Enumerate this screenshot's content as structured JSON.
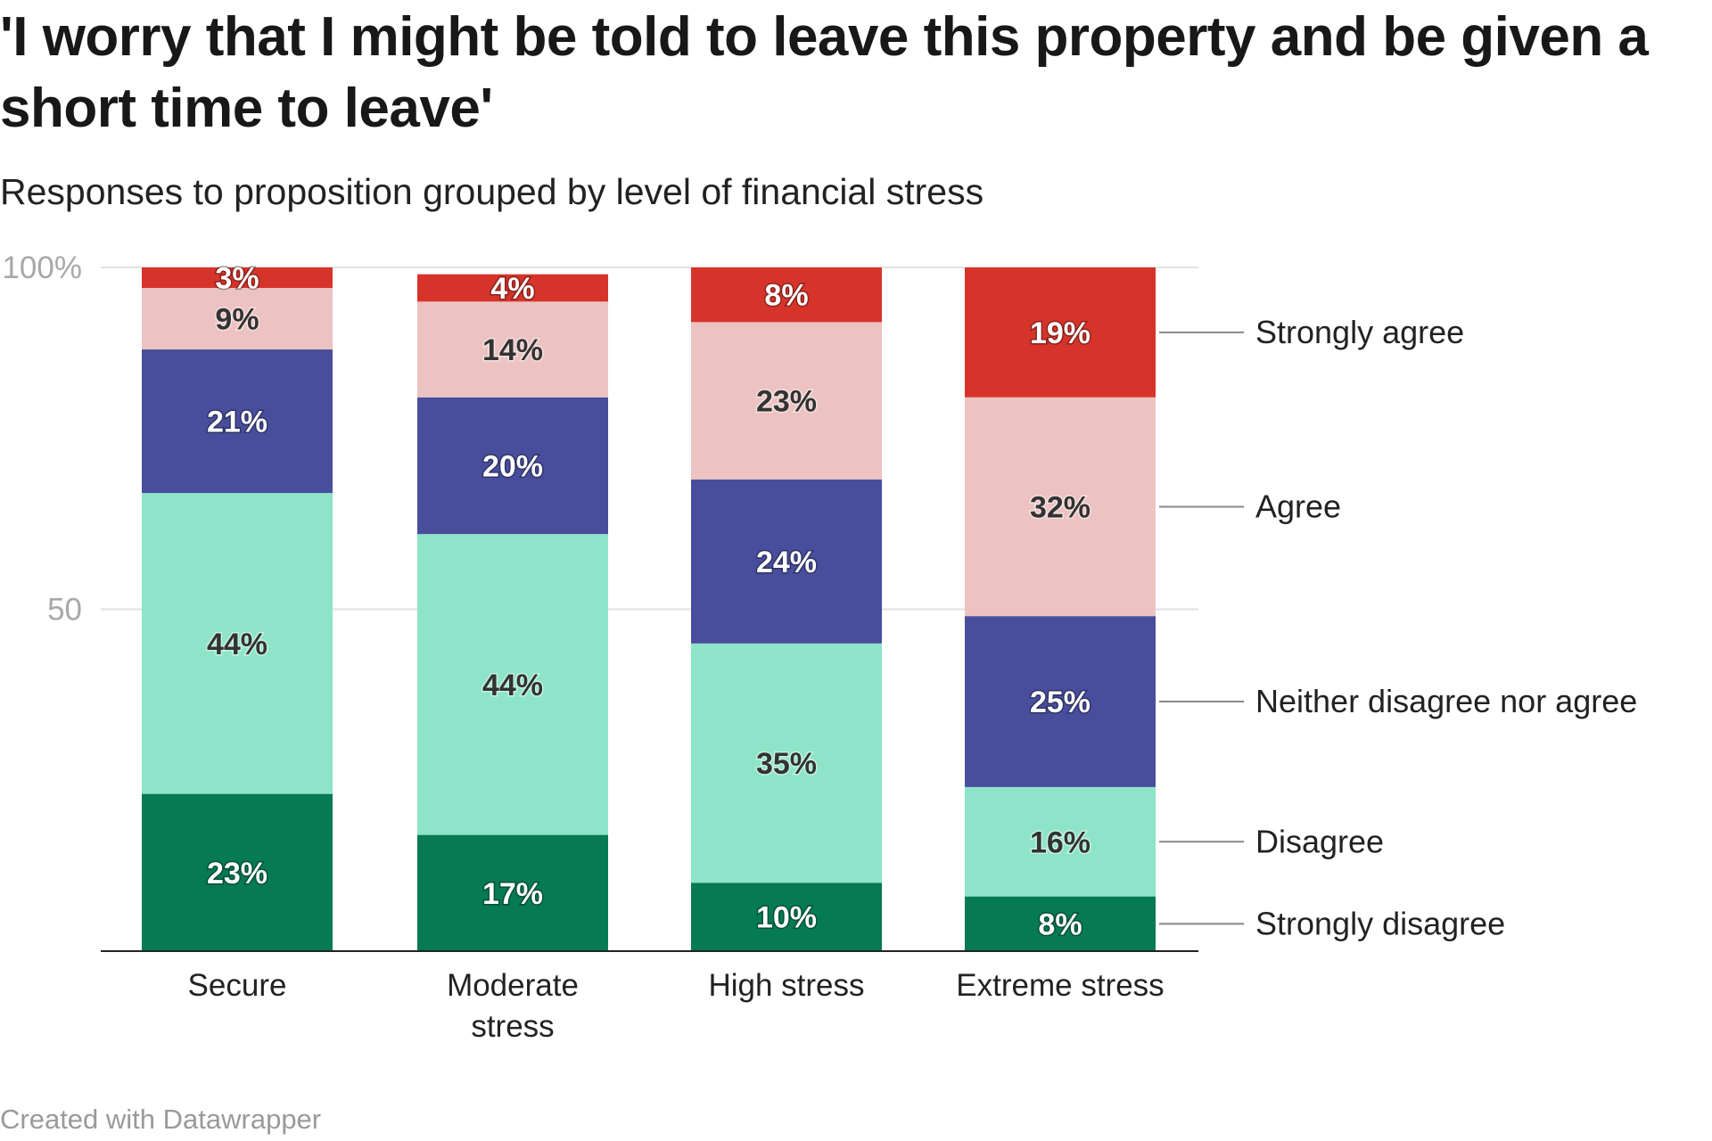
{
  "chart_data": {
    "type": "bar",
    "stacked": true,
    "title": "'I worry that I might be told to leave this property and be given a short time to leave'",
    "subtitle": "Responses to proposition grouped by level of financial stress",
    "categories": [
      [
        "Secure"
      ],
      [
        "Moderate",
        "stress"
      ],
      [
        "High stress"
      ],
      [
        "Extreme stress"
      ]
    ],
    "series": [
      {
        "name": "Strongly disagree",
        "color": "#067a52",
        "values": [
          23,
          17,
          10,
          8
        ]
      },
      {
        "name": "Disagree",
        "color": "#8ee4c8",
        "values": [
          44,
          44,
          35,
          16
        ]
      },
      {
        "name": "Neither disagree nor agree",
        "color": "#484e9c",
        "values": [
          21,
          20,
          24,
          25
        ]
      },
      {
        "name": "Agree",
        "color": "#ecc3c2",
        "values": [
          9,
          14,
          23,
          32
        ]
      },
      {
        "name": "Strongly agree",
        "color": "#d6342a",
        "values": [
          3,
          4,
          8,
          19
        ]
      }
    ],
    "value_suffix": "%",
    "yticks": [
      {
        "value": 100,
        "label": "100%"
      },
      {
        "value": 50,
        "label": "50"
      }
    ],
    "ylim": [
      0,
      100
    ],
    "grid": true,
    "legend": "right, direct labels"
  },
  "footer": "Created with Datawrapper"
}
